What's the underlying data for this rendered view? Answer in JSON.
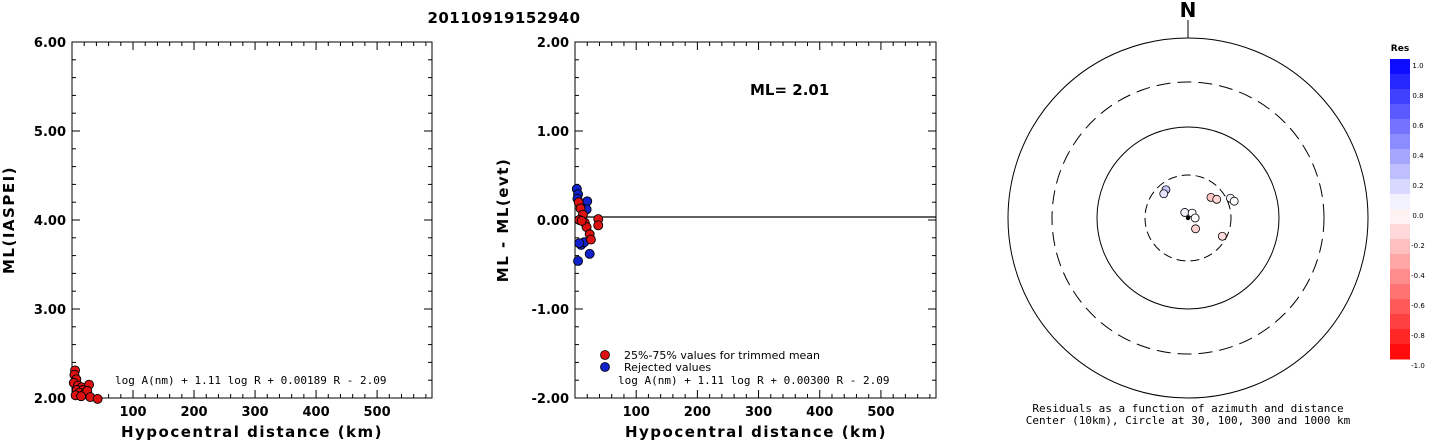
{
  "page_title": "20110919152940",
  "colors": {
    "red": "#dd1111",
    "blue": "#1122cc"
  },
  "chart_data": [
    {
      "type": "scatter",
      "ylabel": "ML(IASPEI)",
      "xlabel": "Hypocentral distance (km)",
      "xlim": [
        0,
        590
      ],
      "ylim": [
        2.0,
        6.0
      ],
      "xticks": [
        100,
        200,
        300,
        400,
        500
      ],
      "yticks": [
        "2.00",
        "3.00",
        "4.00",
        "5.00",
        "6.00"
      ],
      "formula": "log A(nm) + 1.11 log R + 0.00189 R - 2.09",
      "points": [
        {
          "x": 5,
          "y": 2.31
        },
        {
          "x": 4,
          "y": 2.26
        },
        {
          "x": 7,
          "y": 2.21
        },
        {
          "x": 3,
          "y": 2.17
        },
        {
          "x": 10,
          "y": 2.14
        },
        {
          "x": 16,
          "y": 2.12
        },
        {
          "x": 8,
          "y": 2.09
        },
        {
          "x": 18,
          "y": 2.09
        },
        {
          "x": 12,
          "y": 2.06
        },
        {
          "x": 20,
          "y": 2.04
        },
        {
          "x": 6,
          "y": 2.03
        },
        {
          "x": 28,
          "y": 2.15
        },
        {
          "x": 25,
          "y": 2.08
        },
        {
          "x": 15,
          "y": 2.02
        },
        {
          "x": 30,
          "y": 2.01
        },
        {
          "x": 42,
          "y": 1.99
        }
      ]
    },
    {
      "type": "scatter",
      "ylabel": "ML - ML(evt)",
      "xlabel": "Hypocentral distance (km)",
      "xlim": [
        0,
        590
      ],
      "ylim": [
        -2.0,
        2.0
      ],
      "xticks": [
        100,
        200,
        300,
        400,
        500
      ],
      "yticks": [
        "-2.00",
        "-1.00",
        "0.00",
        "1.00",
        "2.00"
      ],
      "ml_label": "ML= 2.01",
      "formula": "log A(nm) + 1.11 log R + 0.00300 R - 2.09",
      "legend": [
        "25%-75% values for trimmed mean",
        "Rejected values"
      ],
      "series": [
        {
          "name": "25%-75% values for trimmed mean",
          "points": [
            {
              "x": 6,
              "y": 0.2
            },
            {
              "x": 9,
              "y": 0.13
            },
            {
              "x": 13,
              "y": 0.06
            },
            {
              "x": 7,
              "y": 0.0
            },
            {
              "x": 16,
              "y": -0.03
            },
            {
              "x": 19,
              "y": -0.08
            },
            {
              "x": 24,
              "y": -0.16
            },
            {
              "x": 26,
              "y": -0.22
            },
            {
              "x": 38,
              "y": 0.01
            },
            {
              "x": 38,
              "y": -0.06
            },
            {
              "x": 11,
              "y": -0.01
            }
          ]
        },
        {
          "name": "Rejected values",
          "points": [
            {
              "x": 3,
              "y": 0.35
            },
            {
              "x": 5,
              "y": 0.29
            },
            {
              "x": 4,
              "y": 0.24
            },
            {
              "x": 9,
              "y": 0.17
            },
            {
              "x": 20,
              "y": 0.21
            },
            {
              "x": 19,
              "y": 0.12
            },
            {
              "x": 5,
              "y": -0.46
            },
            {
              "x": 10,
              "y": -0.28
            },
            {
              "x": 15,
              "y": -0.25
            },
            {
              "x": 24,
              "y": -0.38
            },
            {
              "x": 7,
              "y": -0.26
            }
          ]
        }
      ]
    },
    {
      "type": "scatter",
      "north_label": "N",
      "caption_line1": "Residuals as a function of azimuth and distance",
      "caption_line2": "Center (10km), Circle at 30, 100, 300 and 1000 km",
      "colorbar_title": "Res",
      "colorbar_ticks": [
        "1.0",
        "0.8",
        "0.6",
        "0.4",
        "0.2",
        "0.0",
        "-0.2",
        "-0.4",
        "-0.6",
        "-0.8",
        "-1.0"
      ],
      "points": [
        {
          "azimuth_deg": 322,
          "distance_km": 25,
          "residual": 0.21
        },
        {
          "azimuth_deg": 315,
          "distance_km": 24,
          "residual": 0.11
        },
        {
          "azimuth_deg": 48,
          "distance_km": 22,
          "residual": -0.22
        },
        {
          "azimuth_deg": 57,
          "distance_km": 24,
          "residual": -0.16
        },
        {
          "azimuth_deg": 65,
          "distance_km": 33,
          "residual": 0.03
        },
        {
          "azimuth_deg": 70,
          "distance_km": 35,
          "residual": -0.01
        },
        {
          "azimuth_deg": 330,
          "distance_km": 8,
          "residual": 0.05
        },
        {
          "azimuth_deg": 40,
          "distance_km": 8,
          "residual": 0.01
        },
        {
          "azimuth_deg": 90,
          "distance_km": 12,
          "residual": 0.0
        },
        {
          "azimuth_deg": 145,
          "distance_km": 14,
          "residual": -0.18
        },
        {
          "azimuth_deg": 118,
          "distance_km": 27,
          "residual": -0.14
        }
      ],
      "epicenter": {
        "azimuth_deg": 0,
        "distance_km": 0
      }
    }
  ]
}
